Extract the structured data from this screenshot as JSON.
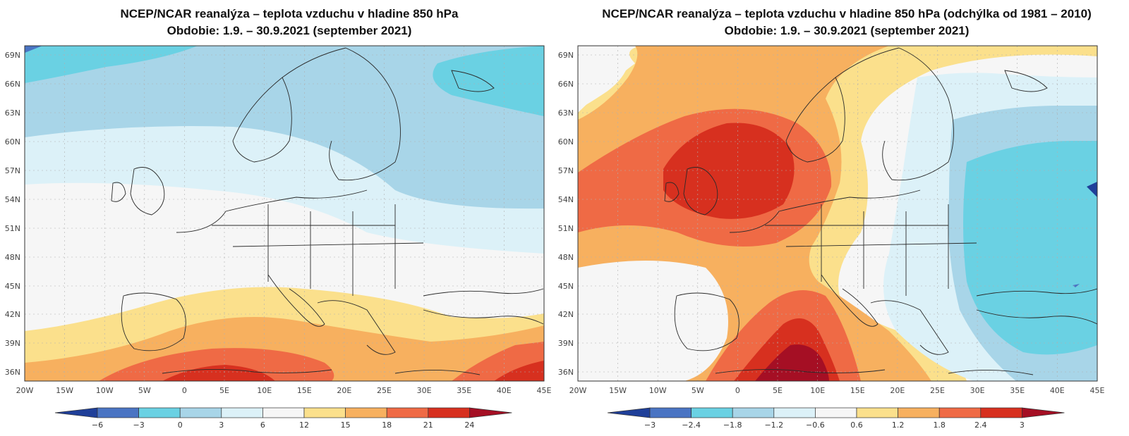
{
  "left": {
    "title_line1": "NCEP/NCAR reanalýza – teplota vzduchu v hladine 850 hPa",
    "title_line2": "Obdobie: 1.9. – 30.9.2021 (september 2021)",
    "lat_labels": [
      "69N",
      "66N",
      "63N",
      "60N",
      "57N",
      "54N",
      "51N",
      "48N",
      "45N",
      "42N",
      "39N",
      "36N"
    ],
    "lon_labels": [
      "20W",
      "15W",
      "10W",
      "5W",
      "0",
      "5E",
      "10E",
      "15E",
      "20E",
      "25E",
      "30E",
      "35E",
      "40E",
      "45E"
    ],
    "colorbar_labels": [
      "−6",
      "−3",
      "0",
      "3",
      "6",
      "12",
      "15",
      "18",
      "21",
      "24"
    ],
    "colorbar_colors": [
      "#1f3f99",
      "#4a74c3",
      "#6ad1e3",
      "#a8d5e8",
      "#dcf1f8",
      "#f6f6f6",
      "#fbe08c",
      "#f7b05f",
      "#ef6a45",
      "#d7301f",
      "#a50f24"
    ]
  },
  "right": {
    "title_line1": "NCEP/NCAR reanalýza – teplota vzduchu v hladine 850 hPa (odchýlka od 1981 – 2010)",
    "title_line2": "Obdobie: 1.9. – 30.9.2021 (september 2021)",
    "lat_labels": [
      "69N",
      "66N",
      "63N",
      "60N",
      "57N",
      "54N",
      "51N",
      "48N",
      "45N",
      "42N",
      "39N",
      "36N"
    ],
    "lon_labels": [
      "20W",
      "15W",
      "10W",
      "5W",
      "0",
      "5E",
      "10E",
      "15E",
      "20E",
      "25E",
      "30E",
      "35E",
      "40E",
      "45E"
    ],
    "colorbar_labels": [
      "−3",
      "−2.4",
      "−1.8",
      "−1.2",
      "−0.6",
      "0.6",
      "1.2",
      "1.8",
      "2.4",
      "3"
    ],
    "colorbar_colors": [
      "#1f3f99",
      "#4a74c3",
      "#6ad1e3",
      "#a8d5e8",
      "#dcf1f8",
      "#f6f6f6",
      "#fbe08c",
      "#f7b05f",
      "#ef6a45",
      "#d7301f",
      "#a50f24"
    ]
  }
}
